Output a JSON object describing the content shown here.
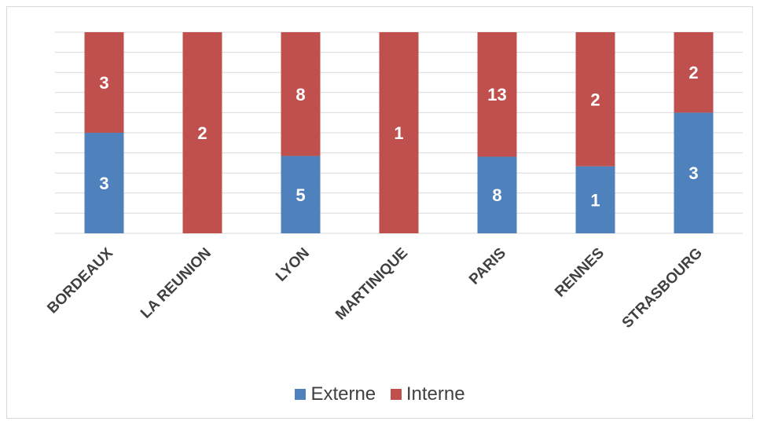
{
  "chart_data": {
    "type": "bar",
    "stacked": true,
    "categories": [
      "BORDEAUX",
      "LA REUNION",
      "LYON",
      "MARTINIQUE",
      "PARIS",
      "RENNES",
      "STRASBOURG"
    ],
    "series": [
      {
        "name": "Externe",
        "color": "#4f81bd",
        "values": [
          3,
          0,
          5,
          0,
          8,
          1,
          3
        ]
      },
      {
        "name": "Interne",
        "color": "#c0504d",
        "values": [
          3,
          2,
          8,
          1,
          13,
          2,
          2
        ]
      }
    ],
    "normalized_to_percent": true,
    "title": "",
    "xlabel": "",
    "ylabel": "",
    "ylim": [
      0,
      100
    ],
    "grid": true,
    "legend_position": "bottom"
  }
}
